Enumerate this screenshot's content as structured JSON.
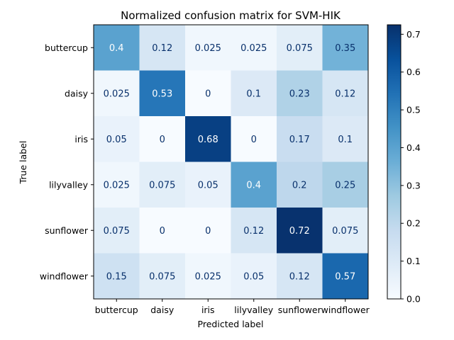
{
  "chart_data": {
    "type": "heatmap",
    "title": "Normalized confusion matrix for SVM-HIK",
    "xlabel": "Predicted label",
    "ylabel": "True label",
    "x_categories": [
      "buttercup",
      "daisy",
      "iris",
      "lilyvalley",
      "sunflower",
      "windflower"
    ],
    "y_categories": [
      "buttercup",
      "daisy",
      "iris",
      "lilyvalley",
      "sunflower",
      "windflower"
    ],
    "values": [
      [
        0.4,
        0.12,
        0.025,
        0.025,
        0.075,
        0.35
      ],
      [
        0.025,
        0.53,
        0,
        0.1,
        0.23,
        0.12
      ],
      [
        0.05,
        0,
        0.68,
        0,
        0.17,
        0.1
      ],
      [
        0.025,
        0.075,
        0.05,
        0.4,
        0.2,
        0.25
      ],
      [
        0.075,
        0,
        0,
        0.12,
        0.72,
        0.075
      ],
      [
        0.15,
        0.075,
        0.025,
        0.05,
        0.12,
        0.57
      ]
    ],
    "colormap": "Blues",
    "colorbar": {
      "range": [
        0,
        0.725
      ],
      "ticks": [
        "0.0",
        "0.1",
        "0.2",
        "0.3",
        "0.4",
        "0.5",
        "0.6",
        "0.7"
      ]
    }
  }
}
